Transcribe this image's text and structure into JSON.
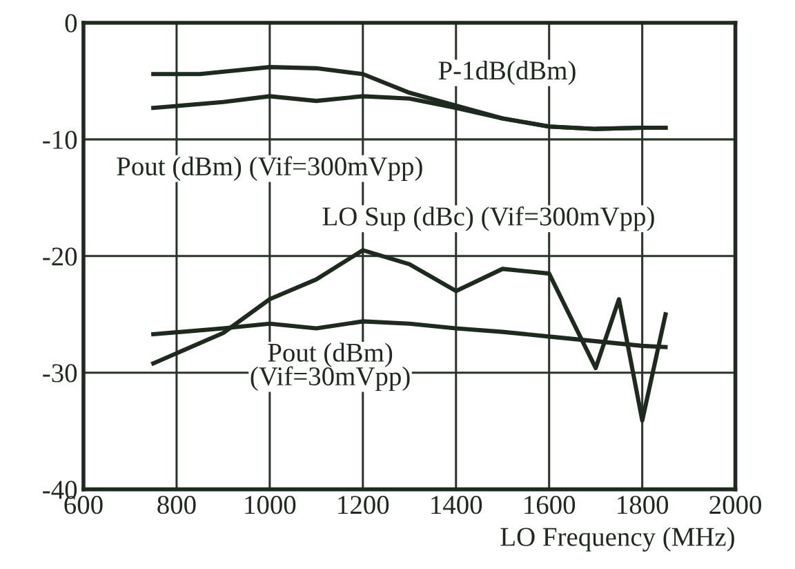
{
  "chart_data": {
    "type": "line",
    "xlabel": "LO Frequency (MHz)",
    "xlim": [
      600,
      2000
    ],
    "xticks": [
      600,
      800,
      1000,
      1200,
      1400,
      1600,
      1800,
      2000
    ],
    "ylim": [
      -40,
      0
    ],
    "yticks": [
      -40,
      -30,
      -20,
      -10,
      0
    ],
    "grid": true,
    "legend": false,
    "marker": "none",
    "line_style": "solid",
    "series": [
      {
        "name": "P-1dB(dBm)",
        "color": "#1f2a1f",
        "x": [
          750,
          850,
          950,
          1000,
          1100,
          1200,
          1300,
          1400,
          1500,
          1600,
          1700,
          1800,
          1850
        ],
        "values": [
          -4.4,
          -4.4,
          -4.0,
          -3.8,
          -3.9,
          -4.4,
          -6.0,
          -7.1,
          -8.2,
          -8.9,
          -9.1,
          -9.0,
          -9.0
        ]
      },
      {
        "name": "Pout (dBm) (Vif=300mVpp)",
        "color": "#1f2a1f",
        "x": [
          750,
          900,
          1000,
          1100,
          1200,
          1300,
          1400,
          1500,
          1600,
          1700,
          1800,
          1850
        ],
        "values": [
          -7.3,
          -6.8,
          -6.3,
          -6.7,
          -6.3,
          -6.5,
          -7.3,
          -8.2,
          -8.9,
          -9.1,
          -9.0,
          -9.0
        ]
      },
      {
        "name": "LO Sup (dBc) (Vif=300mVpp)",
        "color": "#1f2a1f",
        "x": [
          750,
          900,
          1000,
          1100,
          1200,
          1300,
          1400,
          1500,
          1600,
          1700,
          1750,
          1800,
          1850
        ],
        "values": [
          -29.2,
          -26.6,
          -23.7,
          -22.0,
          -19.5,
          -20.7,
          -23.0,
          -21.1,
          -21.5,
          -29.6,
          -23.7,
          -34.1,
          -25.0
        ]
      },
      {
        "name": "Pout (dBm)\n(Vif=30mVpp)",
        "color": "#1f2a1f",
        "x": [
          750,
          900,
          1000,
          1100,
          1200,
          1300,
          1400,
          1500,
          1600,
          1700,
          1800,
          1850
        ],
        "values": [
          -26.7,
          -26.2,
          -25.8,
          -26.2,
          -25.6,
          -25.8,
          -26.2,
          -26.5,
          -26.9,
          -27.3,
          -27.7,
          -27.8
        ]
      }
    ]
  }
}
